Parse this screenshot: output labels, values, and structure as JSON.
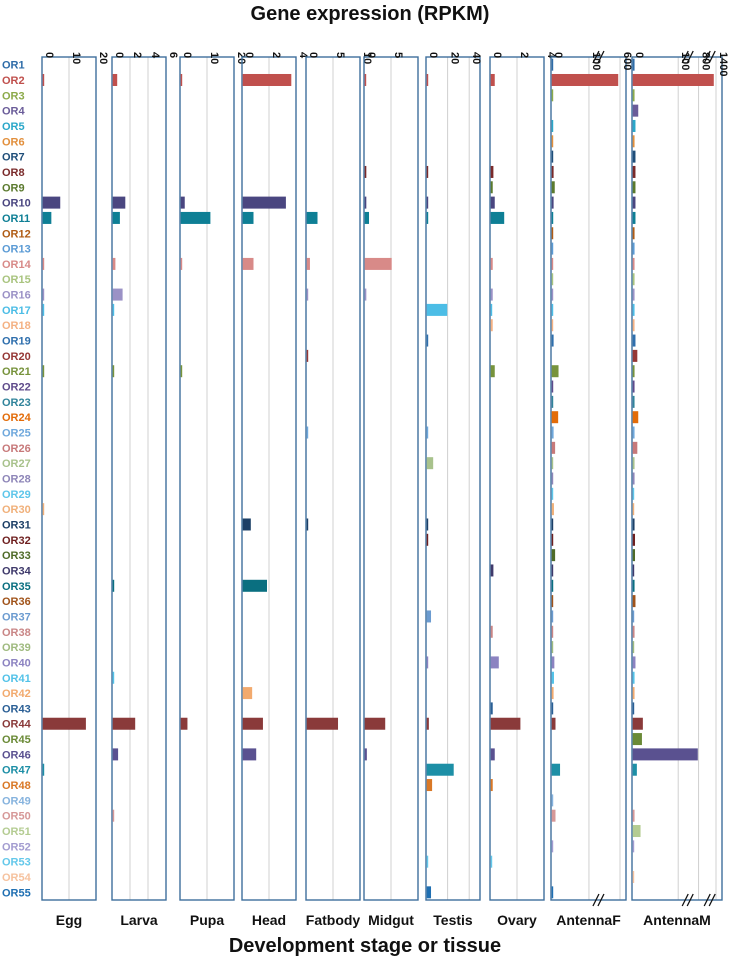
{
  "chart_data": {
    "type": "bar",
    "orientation": "horizontal",
    "title": "Gene expression (RPKM)",
    "xlabel": "Development stage or tissue",
    "grid": true,
    "categories": [
      "OR1",
      "OR2",
      "OR3",
      "OR4",
      "OR5",
      "OR6",
      "OR7",
      "OR8",
      "OR9",
      "OR10",
      "OR11",
      "OR12",
      "OR13",
      "OR14",
      "OR15",
      "OR16",
      "OR17",
      "OR18",
      "OR19",
      "OR20",
      "OR21",
      "OR22",
      "OR23",
      "OR24",
      "OR25",
      "OR26",
      "OR27",
      "OR28",
      "OR29",
      "OR30",
      "OR31",
      "OR32",
      "OR33",
      "OR34",
      "OR35",
      "OR36",
      "OR37",
      "OR38",
      "OR39",
      "OR40",
      "OR41",
      "OR42",
      "OR43",
      "OR44",
      "OR45",
      "OR46",
      "OR47",
      "OR48",
      "OR49",
      "OR50",
      "OR51",
      "OR52",
      "OR53",
      "OR54",
      "OR55"
    ],
    "category_colors": [
      "#2e6ca8",
      "#c0504d",
      "#8caa4a",
      "#6a5c99",
      "#2aa7c9",
      "#e28f3c",
      "#1f4e79",
      "#7a2a2a",
      "#5b7a2e",
      "#4a4680",
      "#0e7f95",
      "#b05c15",
      "#5b9bd5",
      "#d88a88",
      "#a9c47f",
      "#9b92c6",
      "#4cbde6",
      "#f4b183",
      "#2f6fad",
      "#953735",
      "#77933c",
      "#5f4b8b",
      "#31849b",
      "#e36c09",
      "#6fa8dc",
      "#c7797a",
      "#a8c28c",
      "#8e86b8",
      "#5ec6ea",
      "#f0b07a",
      "#1c3f66",
      "#6e1f1f",
      "#4f6b28",
      "#3f3a6b",
      "#0a6f80",
      "#a0531a",
      "#6b9bd0",
      "#c98686",
      "#9fba7f",
      "#8c83c1",
      "#52c2e8",
      "#f2aa6e",
      "#2a5f95",
      "#8a3a3a",
      "#6a8a36",
      "#5a5190",
      "#1d8fa6",
      "#d97826",
      "#86b3de",
      "#d69898",
      "#b4cc92",
      "#a39cd0",
      "#64c8ea",
      "#f6c29e",
      "#1f6fb2"
    ],
    "series": [
      {
        "name": "Egg",
        "xlim": [
          0,
          20
        ],
        "ticks": [
          "0",
          "10",
          "20"
        ],
        "values": {
          "OR2": 0.3,
          "OR10": 6.5,
          "OR11": 3.2,
          "OR14": 0.3,
          "OR16": 0.2,
          "OR17": 0.2,
          "OR21": 0.2,
          "OR30": 0.5,
          "OR44": 16,
          "OR47": 0.2
        }
      },
      {
        "name": "Larva",
        "xlim": [
          0,
          6
        ],
        "ticks": [
          "0",
          "2",
          "4",
          "6"
        ],
        "values": {
          "OR2": 0.5,
          "OR10": 1.4,
          "OR11": 0.8,
          "OR14": 0.3,
          "OR16": 1.1,
          "OR17": 0.1,
          "OR21": 0.15,
          "OR35": 0.1,
          "OR41": 0.05,
          "OR44": 2.5,
          "OR46": 0.6,
          "OR50": 0.05
        }
      },
      {
        "name": "Pupa",
        "xlim": [
          0,
          20
        ],
        "ticks": [
          "0",
          "10",
          "20"
        ],
        "values": {
          "OR2": 0.5,
          "OR10": 1.5,
          "OR11": 11,
          "OR14": 0.2,
          "OR21": 0.3,
          "OR44": 2.5
        }
      },
      {
        "name": "Head",
        "xlim": [
          0,
          4
        ],
        "ticks": [
          "0",
          "2",
          "4"
        ],
        "values": {
          "OR2": 3.6,
          "OR10": 3.2,
          "OR11": 0.8,
          "OR14": 0.8,
          "OR31": 0.6,
          "OR35": 1.8,
          "OR42": 0.7,
          "OR44": 1.5,
          "OR46": 1.0
        }
      },
      {
        "name": "Fatbody",
        "xlim": [
          0,
          10
        ],
        "ticks": [
          "0",
          "5",
          "10"
        ],
        "values": {
          "OR11": 2.0,
          "OR14": 0.6,
          "OR16": 0.1,
          "OR20": 0.1,
          "OR25": 0.1,
          "OR31": 0.1,
          "OR44": 5.8
        }
      },
      {
        "name": "Midgut",
        "xlim": [
          0,
          10
        ],
        "ticks": [
          "0",
          "5"
        ],
        "values": {
          "OR2": 0.1,
          "OR8": 0.3,
          "OR10": 0.3,
          "OR11": 0.8,
          "OR14": 5.0,
          "OR16": 0.3,
          "OR44": 3.8,
          "OR46": 0.4
        }
      },
      {
        "name": "Testis",
        "xlim": [
          0,
          50
        ],
        "ticks": [
          "0",
          "20",
          "40"
        ],
        "values": {
          "OR2": 1,
          "OR8": 1,
          "OR10": 1,
          "OR11": 1,
          "OR17": 19,
          "OR19": 1,
          "OR25": 1,
          "OR27": 6,
          "OR31": 1,
          "OR32": 1,
          "OR37": 4,
          "OR40": 1,
          "OR44": 2,
          "OR47": 25,
          "OR48": 5,
          "OR53": 1,
          "OR55": 4
        }
      },
      {
        "name": "Ovary",
        "xlim": [
          0,
          4
        ],
        "ticks": [
          "0",
          "2",
          "4"
        ],
        "values": {
          "OR2": 0.3,
          "OR8": 0.2,
          "OR9": 0.15,
          "OR10": 0.3,
          "OR11": 1.0,
          "OR14": 0.15,
          "OR16": 0.15,
          "OR17": 0.1,
          "OR18": 0.15,
          "OR21": 0.3,
          "OR34": 0.2,
          "OR38": 0.15,
          "OR40": 0.6,
          "OR43": 0.15,
          "OR44": 2.2,
          "OR46": 0.3,
          "OR48": 0.15,
          "OR53": 0.1
        }
      },
      {
        "name": "AntennaF",
        "xlim": [
          0,
          600
        ],
        "ticks": [
          "0",
          "100",
          "600"
        ],
        "axis_break": true,
        "values": {
          "OR1": 3,
          "OR2": 560,
          "OR3": 3,
          "OR5": 4,
          "OR6": 4,
          "OR7": 3,
          "OR8": 5,
          "OR9": 8,
          "OR10": 5,
          "OR11": 4,
          "OR12": 4,
          "OR13": 4,
          "OR14": 3,
          "OR15": 3,
          "OR16": 3,
          "OR17": 4,
          "OR18": 3,
          "OR19": 5,
          "OR21": 18,
          "OR22": 4,
          "OR23": 4,
          "OR24": 17,
          "OR25": 5,
          "OR26": 9,
          "OR27": 2,
          "OR28": 2,
          "OR29": 2,
          "OR30": 6,
          "OR31": 3,
          "OR32": 4,
          "OR33": 9,
          "OR34": 3,
          "OR35": 4,
          "OR36": 3,
          "OR37": 3,
          "OR38": 3,
          "OR39": 2,
          "OR40": 7,
          "OR41": 6,
          "OR42": 5,
          "OR43": 3,
          "OR44": 10,
          "OR47": 22,
          "OR49": 4,
          "OR50": 10,
          "OR52": 2,
          "OR55": 2
        }
      },
      {
        "name": "AntennaM",
        "xlim": [
          0,
          1400
        ],
        "ticks": [
          "0",
          "100",
          "800",
          "1400"
        ],
        "axis_break": true,
        "values": {
          "OR1": 4,
          "OR2": 1300,
          "OR3": 4,
          "OR4": 12,
          "OR5": 6,
          "OR6": 4,
          "OR7": 6,
          "OR8": 6,
          "OR9": 6,
          "OR10": 6,
          "OR11": 6,
          "OR12": 4,
          "OR13": 4,
          "OR14": 4,
          "OR15": 4,
          "OR16": 4,
          "OR17": 4,
          "OR18": 4,
          "OR19": 6,
          "OR20": 10,
          "OR21": 4,
          "OR22": 4,
          "OR23": 4,
          "OR24": 12,
          "OR25": 4,
          "OR26": 10,
          "OR27": 4,
          "OR28": 4,
          "OR29": 3,
          "OR30": 3,
          "OR31": 4,
          "OR32": 5,
          "OR33": 5,
          "OR34": 3,
          "OR35": 4,
          "OR36": 6,
          "OR37": 3,
          "OR38": 4,
          "OR39": 3,
          "OR40": 6,
          "OR41": 4,
          "OR42": 4,
          "OR43": 2,
          "OR44": 22,
          "OR45": 20,
          "OR46": 750,
          "OR47": 9,
          "OR50": 4,
          "OR51": 17,
          "OR52": 3,
          "OR54": 3
        }
      }
    ]
  }
}
